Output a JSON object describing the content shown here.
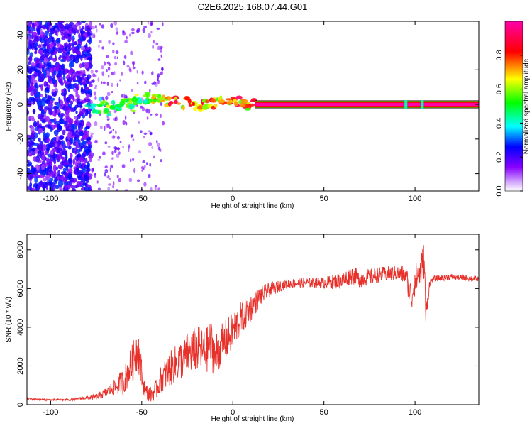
{
  "title": "C2E6.2025.168.07.44.G01",
  "chart_data": [
    {
      "type": "heatmap",
      "xlabel": "Height of straight line (km)",
      "ylabel": "Frequency (Hz)",
      "xlim": [
        -113,
        135
      ],
      "ylim": [
        -50,
        48
      ],
      "xticks": [
        -100,
        -50,
        0,
        50,
        100
      ],
      "yticks": [
        -40,
        -20,
        0,
        20,
        40
      ],
      "colorbar": {
        "label": "Normalized spectral amplitude",
        "range": [
          0,
          1
        ],
        "ticks": [
          "0.0",
          "0.2",
          "0.4",
          "0.6",
          "0.8"
        ],
        "tick_values": [
          0.0,
          0.2,
          0.4,
          0.6,
          0.8
        ],
        "colors": [
          "#ffffff",
          "#8800ff",
          "#0000ff",
          "#00ffff",
          "#00ff00",
          "#ffff00",
          "#ff0000",
          "#ff00aa"
        ]
      },
      "band": {
        "x_from": 12,
        "x_to": 135,
        "freq": 0,
        "amplitude": 0.95
      },
      "blobs": [
        {
          "x": -78,
          "f": 0,
          "a": 0.35
        },
        {
          "x": -75,
          "f": -2,
          "a": 0.45
        },
        {
          "x": -72,
          "f": 1,
          "a": 0.45
        },
        {
          "x": -68,
          "f": -3,
          "a": 0.5
        },
        {
          "x": -65,
          "f": 0,
          "a": 0.45
        },
        {
          "x": -62,
          "f": -2,
          "a": 0.5
        },
        {
          "x": -58,
          "f": 2,
          "a": 0.45
        },
        {
          "x": -55,
          "f": -1,
          "a": 0.45
        },
        {
          "x": -52,
          "f": 3,
          "a": 0.5
        },
        {
          "x": -48,
          "f": 4,
          "a": 0.45
        },
        {
          "x": -45,
          "f": 3,
          "a": 0.55
        },
        {
          "x": -42,
          "f": 3,
          "a": 0.6
        },
        {
          "x": -38,
          "f": 3,
          "a": 0.7
        },
        {
          "x": -34,
          "f": 2,
          "a": 0.7
        },
        {
          "x": -30,
          "f": 2,
          "a": 0.75
        },
        {
          "x": -26,
          "f": 1,
          "a": 0.7
        },
        {
          "x": -22,
          "f": 0,
          "a": 0.7
        },
        {
          "x": -18,
          "f": 0,
          "a": 0.72
        },
        {
          "x": -14,
          "f": 0,
          "a": 0.7
        },
        {
          "x": -10,
          "f": 1,
          "a": 0.7
        },
        {
          "x": -6,
          "f": 1,
          "a": 0.72
        },
        {
          "x": -2,
          "f": 1,
          "a": 0.7
        },
        {
          "x": 2,
          "f": 1,
          "a": 0.72
        },
        {
          "x": 6,
          "f": 0,
          "a": 0.7
        },
        {
          "x": 10,
          "f": 0,
          "a": 0.7
        }
      ]
    },
    {
      "type": "line",
      "xlabel": "Height of straight line (km)",
      "ylabel": "SNR (10 * v/v)",
      "xlim": [
        -113,
        135
      ],
      "ylim": [
        0,
        8800
      ],
      "xticks": [
        -100,
        -50,
        0,
        50,
        100
      ],
      "yticks": [
        0,
        2000,
        4000,
        6000,
        8000
      ],
      "color": "#e8302a",
      "x": [
        -113,
        -100,
        -90,
        -80,
        -75,
        -70,
        -65,
        -60,
        -55,
        -52,
        -50,
        -48,
        -45,
        -42,
        -40,
        -35,
        -30,
        -25,
        -20,
        -15,
        -12,
        -10,
        -5,
        0,
        5,
        10,
        15,
        20,
        25,
        30,
        40,
        50,
        60,
        65,
        70,
        80,
        90,
        95,
        98,
        100,
        103,
        105,
        106,
        108,
        110,
        120,
        135
      ],
      "y": [
        300,
        250,
        250,
        350,
        400,
        600,
        900,
        1200,
        2200,
        3000,
        1500,
        700,
        500,
        800,
        1200,
        1800,
        2200,
        2600,
        2900,
        2700,
        3200,
        2500,
        3200,
        3800,
        4500,
        5000,
        5600,
        5900,
        6100,
        6250,
        6300,
        6300,
        6400,
        6700,
        6500,
        6700,
        6800,
        6700,
        5500,
        6500,
        6800,
        7500,
        4500,
        6300,
        6500,
        6600,
        6500
      ],
      "fluctuation": [
        50,
        50,
        50,
        100,
        150,
        250,
        400,
        700,
        1000,
        1200,
        800,
        400,
        400,
        500,
        700,
        900,
        1000,
        1100,
        1200,
        1200,
        1200,
        1200,
        1100,
        1000,
        900,
        700,
        500,
        400,
        300,
        250,
        250,
        300,
        450,
        500,
        450,
        400,
        400,
        500,
        900,
        800,
        900,
        1000,
        800,
        200,
        150,
        150,
        150
      ]
    }
  ]
}
